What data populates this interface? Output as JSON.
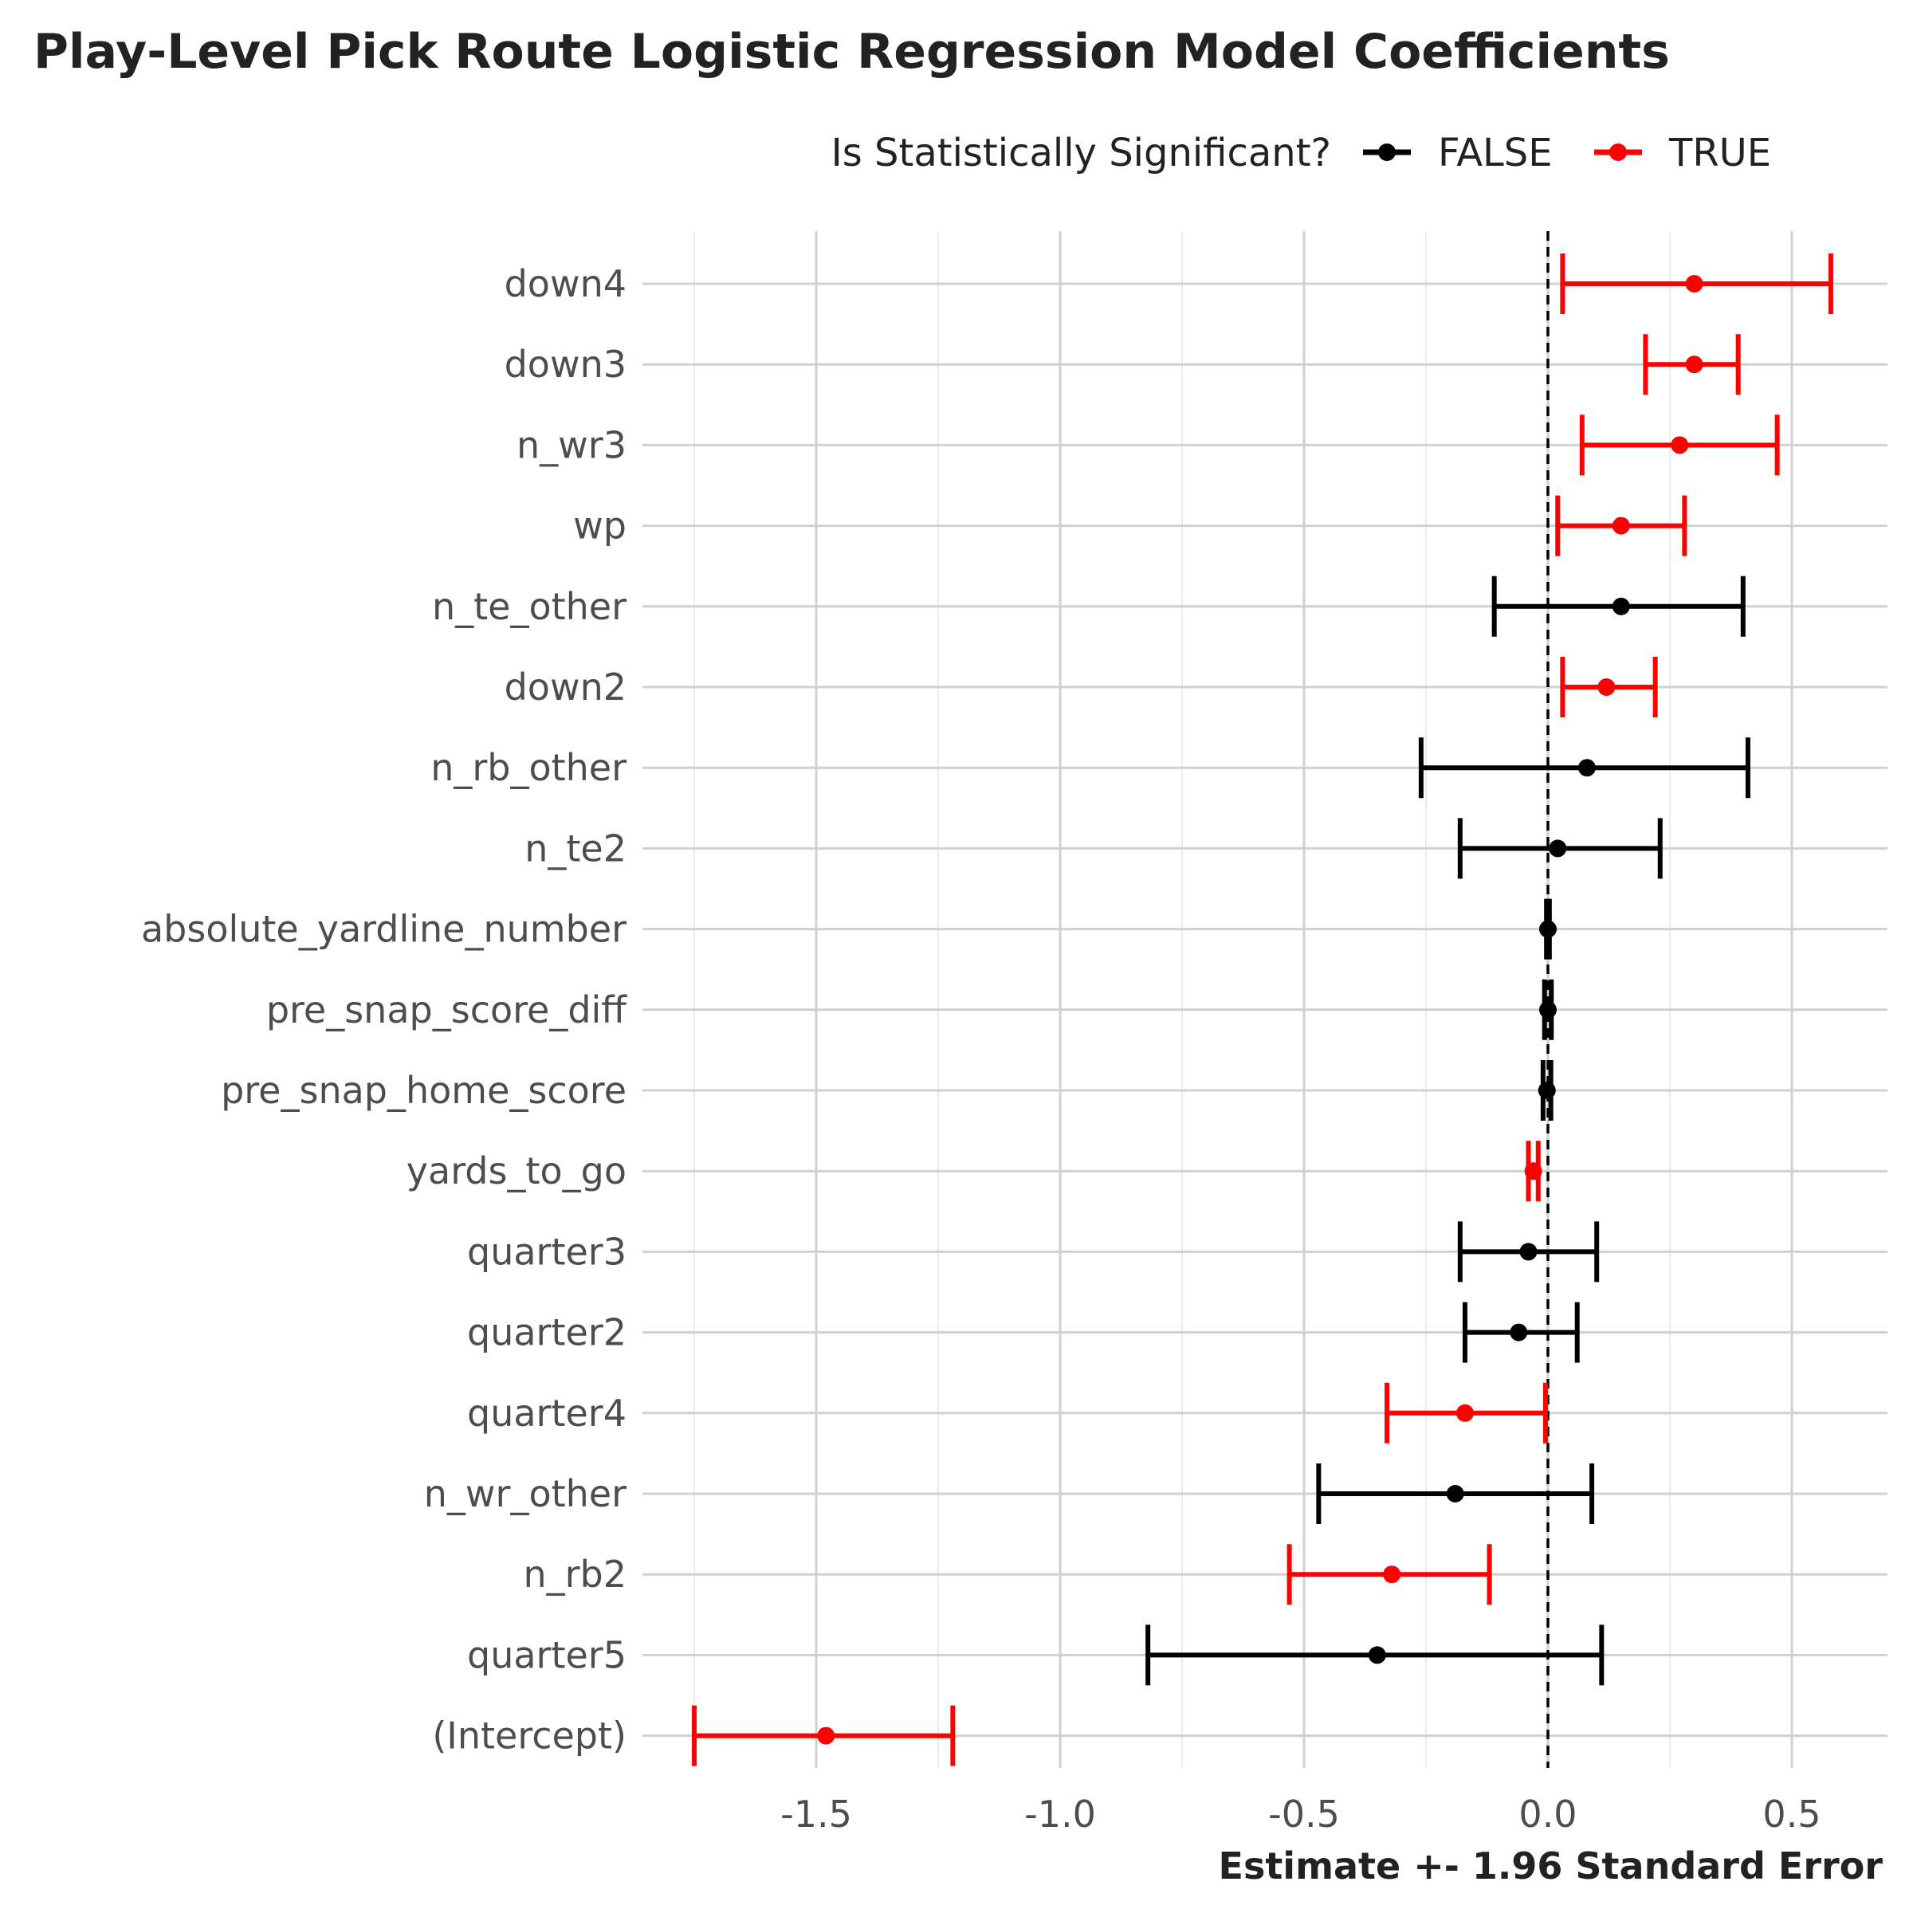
{
  "chart_data": {
    "type": "errorbar",
    "title": "Play-Level Pick Route Logistic Regression Model Coefficients",
    "xlabel": "Estimate +- 1.96 Standard Error",
    "ylabel": "",
    "xlim": [
      -1.85,
      0.7
    ],
    "x_ticks": [
      -1.5,
      -1.0,
      -0.5,
      0.0,
      0.5
    ],
    "x_tick_labels": [
      "-1.5",
      "-1.0",
      "-0.5",
      "0.0",
      "0.5"
    ],
    "reference_line": 0,
    "grid": true,
    "legend": {
      "title": "Is Statistically Significant?",
      "position": "top",
      "entries": [
        {
          "label": "FALSE",
          "color": "#000000"
        },
        {
          "label": "TRUE",
          "color": "#ff0000"
        }
      ]
    },
    "terms": [
      {
        "term": "down4",
        "estimate": 0.3,
        "lower": 0.03,
        "upper": 0.58,
        "significant": true
      },
      {
        "term": "down3",
        "estimate": 0.3,
        "lower": 0.2,
        "upper": 0.39,
        "significant": true
      },
      {
        "term": "n_wr3",
        "estimate": 0.27,
        "lower": 0.07,
        "upper": 0.47,
        "significant": true
      },
      {
        "term": "wp",
        "estimate": 0.15,
        "lower": 0.02,
        "upper": 0.28,
        "significant": true
      },
      {
        "term": "n_te_other",
        "estimate": 0.15,
        "lower": -0.11,
        "upper": 0.4,
        "significant": false
      },
      {
        "term": "down2",
        "estimate": 0.12,
        "lower": 0.03,
        "upper": 0.22,
        "significant": true
      },
      {
        "term": "n_rb_other",
        "estimate": 0.08,
        "lower": -0.26,
        "upper": 0.41,
        "significant": false
      },
      {
        "term": "n_te2",
        "estimate": 0.02,
        "lower": -0.18,
        "upper": 0.23,
        "significant": false
      },
      {
        "term": "absolute_yardline_number",
        "estimate": 0.0,
        "lower": -0.003,
        "upper": 0.003,
        "significant": false
      },
      {
        "term": "pre_snap_score_diff",
        "estimate": 0.0,
        "lower": -0.007,
        "upper": 0.007,
        "significant": false
      },
      {
        "term": "pre_snap_home_score",
        "estimate": -0.002,
        "lower": -0.01,
        "upper": 0.006,
        "significant": false
      },
      {
        "term": "yards_to_go",
        "estimate": -0.03,
        "lower": -0.04,
        "upper": -0.02,
        "significant": true
      },
      {
        "term": "quarter3",
        "estimate": -0.04,
        "lower": -0.18,
        "upper": 0.1,
        "significant": false
      },
      {
        "term": "quarter2",
        "estimate": -0.06,
        "lower": -0.17,
        "upper": 0.06,
        "significant": false
      },
      {
        "term": "quarter4",
        "estimate": -0.17,
        "lower": -0.33,
        "upper": -0.005,
        "significant": true
      },
      {
        "term": "n_wr_other",
        "estimate": -0.19,
        "lower": -0.47,
        "upper": 0.09,
        "significant": false
      },
      {
        "term": "n_rb2",
        "estimate": -0.32,
        "lower": -0.53,
        "upper": -0.12,
        "significant": true
      },
      {
        "term": "quarter5",
        "estimate": -0.35,
        "lower": -0.82,
        "upper": 0.11,
        "significant": false
      },
      {
        "term": "(Intercept)",
        "estimate": -1.48,
        "lower": -1.75,
        "upper": -1.22,
        "significant": true
      }
    ]
  }
}
